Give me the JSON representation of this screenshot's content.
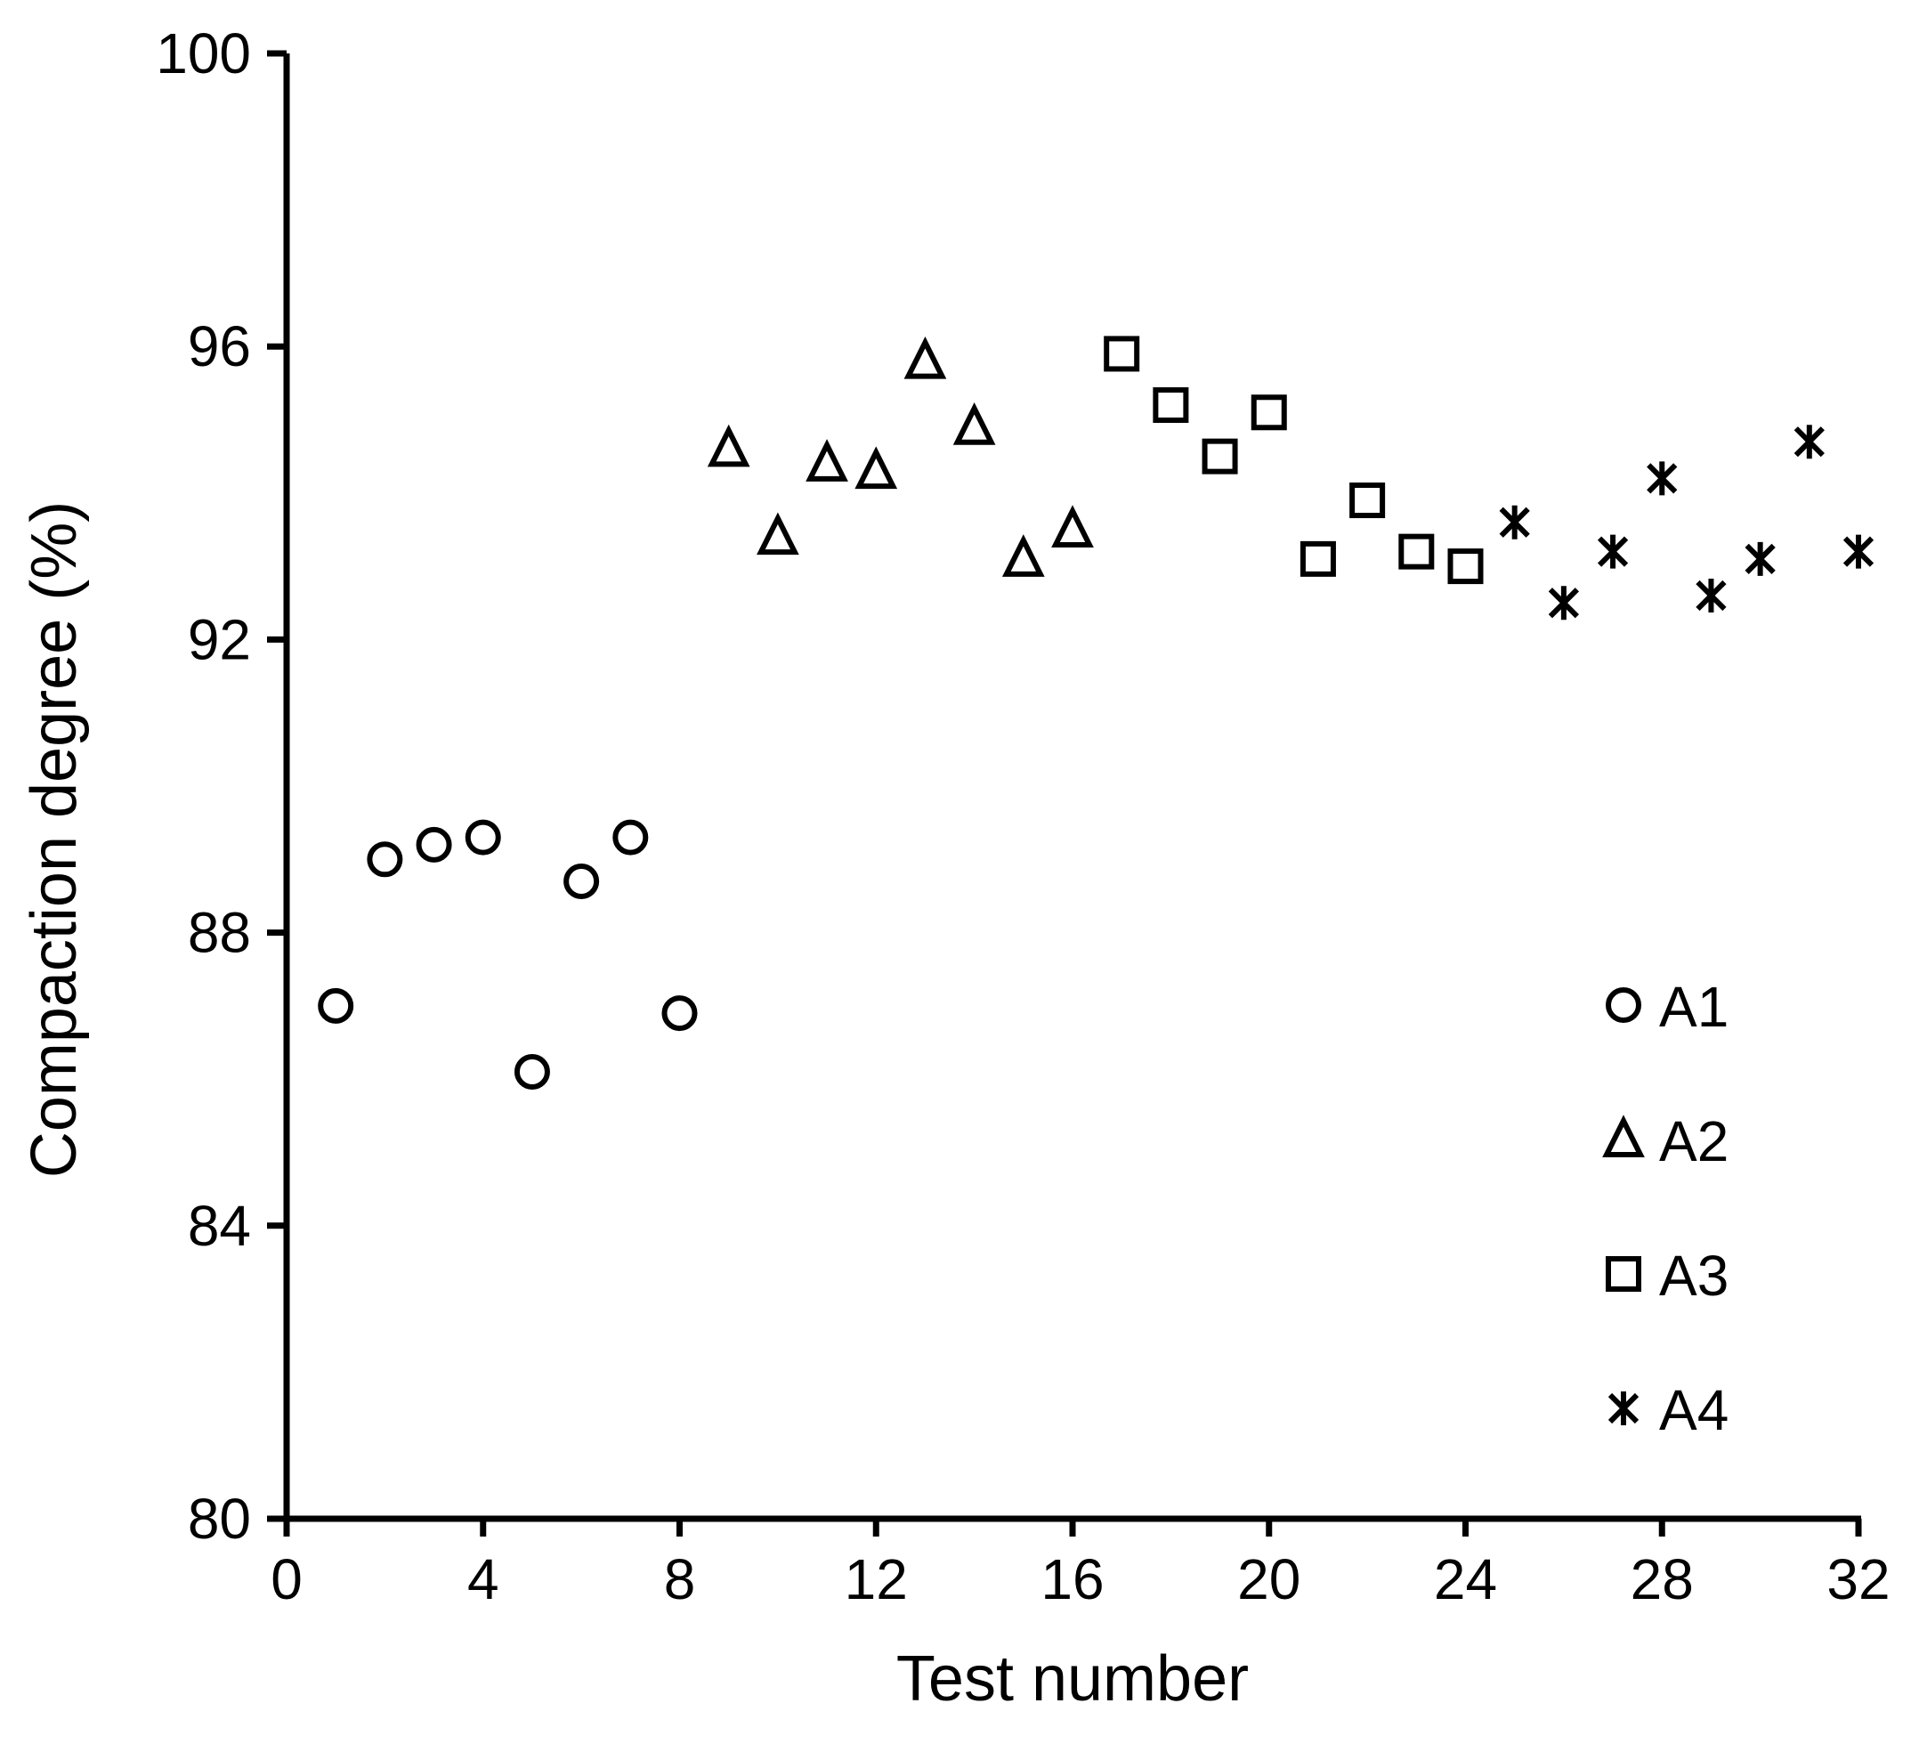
{
  "chart_data": {
    "type": "scatter",
    "xlabel": "Test number",
    "ylabel": "Compaction degree (%)",
    "xlim": [
      0,
      32
    ],
    "ylim": [
      80,
      100
    ],
    "xticks": [
      0,
      4,
      8,
      12,
      16,
      20,
      24,
      28,
      32
    ],
    "yticks": [
      80,
      84,
      88,
      92,
      96,
      100
    ],
    "grid": false,
    "legend_position": "lower-right",
    "series": [
      {
        "name": "A1",
        "marker": "circle",
        "x": [
          1,
          2,
          3,
          4,
          5,
          6,
          7,
          8
        ],
        "y": [
          87.0,
          89.0,
          89.2,
          89.3,
          86.1,
          88.7,
          89.3,
          86.9
        ]
      },
      {
        "name": "A2",
        "marker": "triangle",
        "x": [
          9,
          10,
          11,
          12,
          13,
          14,
          15,
          16
        ],
        "y": [
          94.6,
          93.4,
          94.4,
          94.3,
          95.8,
          94.9,
          93.1,
          93.5
        ]
      },
      {
        "name": "A3",
        "marker": "square",
        "x": [
          17,
          18,
          19,
          20,
          21,
          22,
          23,
          24
        ],
        "y": [
          95.9,
          95.2,
          94.5,
          95.1,
          93.1,
          93.9,
          93.2,
          93.0
        ]
      },
      {
        "name": "A4",
        "marker": "asterisk",
        "x": [
          25,
          26,
          27,
          28,
          29,
          30,
          31,
          32
        ],
        "y": [
          93.6,
          92.5,
          93.2,
          94.2,
          92.6,
          93.1,
          94.7,
          93.2
        ]
      }
    ]
  }
}
